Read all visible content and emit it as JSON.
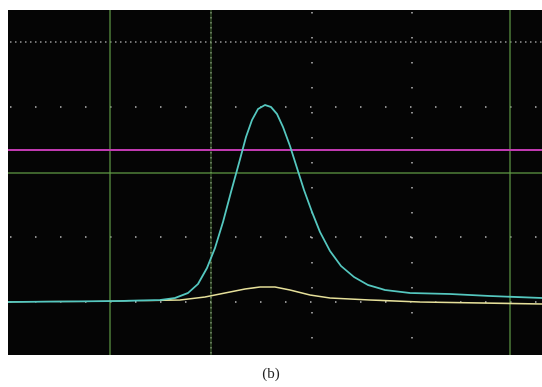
{
  "caption": "(b)"
}
